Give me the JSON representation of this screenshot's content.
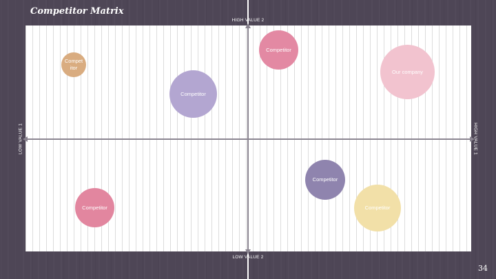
{
  "slide": {
    "title": "Competitor Matrix",
    "page_number": "34"
  },
  "axes": {
    "top": "HIGH VALUE 2",
    "bottom": "LOW VALUE 2",
    "left": "LOW VALUE 1",
    "right": "HIGH VALUE 1"
  },
  "bubbles": [
    {
      "label": "Compet\nitor",
      "color": "#d9ac80"
    },
    {
      "label": "Competitor",
      "color": "#b3a6d1"
    },
    {
      "label": "Competitor",
      "color": "#e389a3"
    },
    {
      "label": "Our company",
      "color": "#f2c3cf"
    },
    {
      "label": "Competitor",
      "color": "#8f84ae"
    },
    {
      "label": "Competitor",
      "color": "#e2869f"
    },
    {
      "label": "Competitor",
      "color": "#f2e0a8"
    }
  ],
  "colors": {
    "background": "#4e4656",
    "plot": "#ffffff",
    "axis": "#8a8490"
  }
}
